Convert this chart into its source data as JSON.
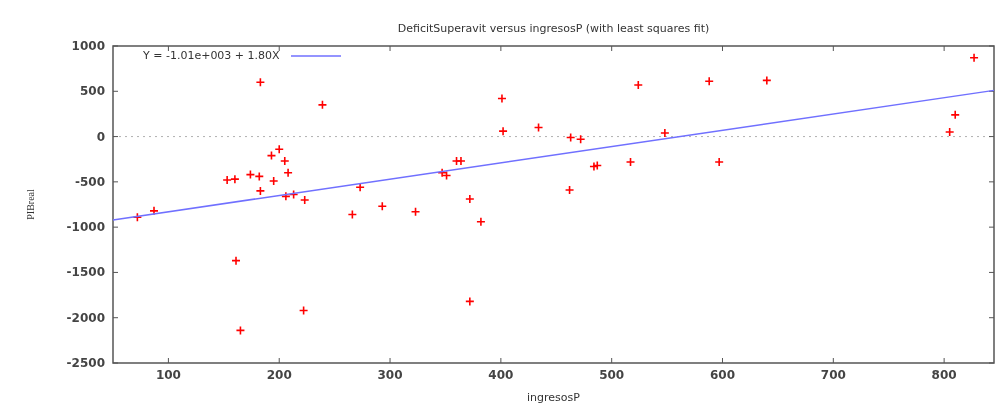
{
  "chart_data": {
    "type": "scatter",
    "title": "DeficitSuperavit versus ingresosP (with least squares fit)",
    "xlabel": "ingresosP",
    "ylabel": "PIBreal",
    "xlim": [
      50,
      845
    ],
    "ylim": [
      -2500,
      1000
    ],
    "xticks": [
      100,
      200,
      300,
      400,
      500,
      600,
      700,
      800
    ],
    "yticks": [
      -2500,
      -2000,
      -1500,
      -1000,
      -500,
      0,
      500,
      1000
    ],
    "grid": false,
    "legend": "top left",
    "marker": "cross",
    "ref_lines": [
      {
        "axis": "y",
        "value": 0,
        "color": "#b0b0b0",
        "line_style": "dotted"
      }
    ],
    "series": [
      {
        "color": "#ff0000",
        "x": [
          72,
          87,
          183,
          239,
          200,
          193,
          205,
          153,
          160,
          174,
          182,
          195,
          208,
          183,
          206,
          213,
          223,
          161,
          222,
          165,
          273,
          266,
          293,
          323,
          347,
          351,
          360,
          364,
          372,
          382,
          372,
          401,
          402,
          434,
          463,
          472,
          462,
          484,
          487,
          517,
          524,
          548,
          588,
          597,
          640,
          805,
          810,
          827
        ],
        "values": [
          -890,
          -820,
          600,
          350,
          -140,
          -210,
          -270,
          -480,
          -470,
          -420,
          -440,
          -490,
          -400,
          -600,
          -660,
          -640,
          -700,
          -1370,
          -1920,
          -2140,
          -560,
          -860,
          -770,
          -830,
          -400,
          -430,
          -270,
          -270,
          -690,
          -940,
          -1820,
          420,
          60,
          100,
          -10,
          -30,
          -590,
          -330,
          -320,
          -280,
          570,
          40,
          610,
          -280,
          620,
          50,
          240,
          870
        ]
      },
      {
        "type": "line",
        "name": "Y = -1.01e+003 + 1.80X",
        "color": "#7070ff",
        "line_style": "solid",
        "marker": "none",
        "x": [
          50,
          845
        ],
        "values": [
          -920,
          510
        ]
      }
    ]
  }
}
